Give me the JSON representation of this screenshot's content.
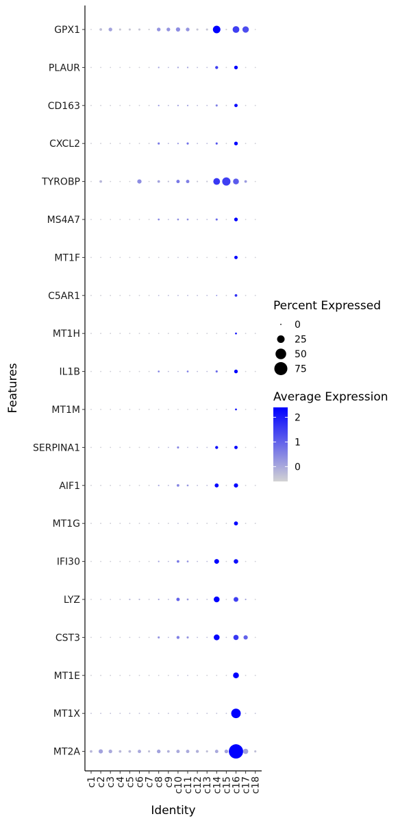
{
  "chart_data": {
    "type": "dotplot",
    "xlabel": "Identity",
    "ylabel": "Features",
    "categories": [
      "c1",
      "c2",
      "c3",
      "c4",
      "c5",
      "c6",
      "c7",
      "c8",
      "c9",
      "c10",
      "c11",
      "c12",
      "c13",
      "c14",
      "c15",
      "c16",
      "c17",
      "c18"
    ],
    "features": [
      "GPX1",
      "PLAUR",
      "CD163",
      "CXCL2",
      "TYROBP",
      "MS4A7",
      "MT1F",
      "C5AR1",
      "MT1H",
      "IL1B",
      "MT1M",
      "SERPINA1",
      "AIF1",
      "MT1G",
      "IFI30",
      "LYZ",
      "CST3",
      "MT1E",
      "MT1X",
      "MT2A"
    ],
    "size_legend": {
      "title": "Percent Expressed",
      "values": [
        0,
        25,
        50,
        75
      ]
    },
    "color_legend": {
      "title": "Average Expression",
      "ticks": [
        0,
        1,
        2
      ],
      "range": [
        -0.6,
        2.4
      ],
      "low_color": "#d3d3d3",
      "high_color": "#0000ff"
    },
    "points": [
      {
        "feature": "GPX1",
        "pct": [
          0.5,
          3,
          6,
          2,
          2,
          2,
          1,
          6,
          6,
          8,
          6,
          2,
          2,
          25,
          1,
          20,
          18,
          0.5
        ],
        "avg": [
          -0.5,
          -0.3,
          0.1,
          -0.4,
          -0.4,
          -0.4,
          -0.5,
          0.3,
          0.3,
          0.4,
          0.3,
          -0.4,
          -0.4,
          2.5,
          -0.5,
          1.5,
          1.3,
          -0.5
        ]
      },
      {
        "feature": "PLAUR",
        "pct": [
          0.3,
          0.3,
          0.3,
          0.3,
          0.3,
          0.3,
          0.3,
          1,
          0.5,
          1,
          1,
          0.5,
          0.5,
          4,
          0.3,
          6,
          0.3,
          0.3
        ],
        "avg": [
          -0.5,
          -0.5,
          -0.5,
          -0.5,
          -0.5,
          -0.5,
          -0.5,
          0.1,
          -0.2,
          0.1,
          0.1,
          -0.2,
          -0.2,
          1.5,
          -0.5,
          2.4,
          -0.5,
          -0.5
        ]
      },
      {
        "feature": "CD163",
        "pct": [
          0.3,
          0.3,
          0.3,
          0.3,
          0.3,
          0.3,
          0.3,
          1,
          0.5,
          1,
          1,
          0.5,
          0.5,
          2,
          0.3,
          5,
          0.3,
          0.3
        ],
        "avg": [
          -0.5,
          -0.5,
          -0.5,
          -0.5,
          -0.5,
          -0.5,
          -0.5,
          0.3,
          -0.2,
          0.2,
          0.2,
          -0.2,
          -0.2,
          0.6,
          -0.5,
          2.3,
          -0.5,
          -0.5
        ]
      },
      {
        "feature": "CXCL2",
        "pct": [
          0.3,
          0.3,
          0.3,
          0.3,
          0.3,
          0.3,
          0.3,
          2,
          0.5,
          1,
          2,
          0.5,
          0.5,
          2,
          0.3,
          6,
          0.3,
          0.3
        ],
        "avg": [
          -0.5,
          -0.5,
          -0.5,
          -0.5,
          -0.5,
          -0.5,
          -0.5,
          0.7,
          -0.2,
          0.3,
          0.8,
          -0.2,
          -0.2,
          1.2,
          -0.5,
          2.4,
          -0.5,
          -0.5
        ]
      },
      {
        "feature": "TYROBP",
        "pct": [
          0.3,
          3,
          0.5,
          0.5,
          0.5,
          8,
          0.5,
          3,
          1,
          5,
          5,
          1,
          1,
          20,
          30,
          15,
          3,
          0.3
        ],
        "avg": [
          -0.5,
          -0.2,
          -0.5,
          -0.5,
          -0.5,
          0.4,
          -0.5,
          0.1,
          -0.3,
          0.7,
          0.6,
          -0.4,
          -0.4,
          1.6,
          1.5,
          1.1,
          0.2,
          -0.5
        ]
      },
      {
        "feature": "MS4A7",
        "pct": [
          0.3,
          0.3,
          0.3,
          0.3,
          0.3,
          0.3,
          0.3,
          1.5,
          0.5,
          1.5,
          1.5,
          0.5,
          0.5,
          2,
          0.3,
          6,
          0.3,
          0.3
        ],
        "avg": [
          -0.5,
          -0.5,
          -0.5,
          -0.5,
          -0.5,
          -0.5,
          -0.5,
          0.5,
          -0.2,
          0.4,
          0.4,
          -0.2,
          -0.2,
          0.9,
          -0.5,
          2.4,
          -0.5,
          -0.5
        ]
      },
      {
        "feature": "MT1F",
        "pct": [
          0.3,
          0.3,
          0.3,
          0.3,
          0.3,
          0.3,
          0.3,
          0.3,
          0.3,
          0.5,
          0.5,
          0.3,
          0.3,
          0.3,
          0.3,
          5,
          0.3,
          0.3
        ],
        "avg": [
          -0.5,
          -0.5,
          -0.5,
          -0.5,
          -0.5,
          -0.5,
          -0.5,
          -0.5,
          -0.5,
          -0.3,
          -0.3,
          -0.5,
          -0.5,
          -0.5,
          -0.5,
          2.4,
          -0.5,
          -0.5
        ]
      },
      {
        "feature": "C5AR1",
        "pct": [
          0.3,
          0.3,
          0.3,
          0.3,
          0.3,
          0.3,
          0.3,
          0.5,
          0.5,
          0.5,
          0.5,
          0.5,
          0.5,
          0.5,
          0.3,
          3,
          0.3,
          0.3
        ],
        "avg": [
          -0.5,
          -0.5,
          -0.5,
          -0.5,
          -0.5,
          -0.5,
          -0.5,
          -0.2,
          -0.2,
          -0.1,
          -0.1,
          -0.2,
          -0.2,
          0.5,
          -0.5,
          1.7,
          -0.5,
          -0.5
        ]
      },
      {
        "feature": "MT1H",
        "pct": [
          0.3,
          0.3,
          0.3,
          0.3,
          0.3,
          0.3,
          0.3,
          0.3,
          0.3,
          0.3,
          0.3,
          0.3,
          0.3,
          0.3,
          0.3,
          1.5,
          0.3,
          0.3
        ],
        "avg": [
          -0.5,
          -0.5,
          -0.5,
          -0.5,
          -0.5,
          -0.5,
          -0.5,
          -0.5,
          -0.5,
          -0.5,
          -0.5,
          -0.5,
          -0.5,
          -0.5,
          -0.5,
          2.2,
          -0.5,
          -0.5
        ]
      },
      {
        "feature": "IL1B",
        "pct": [
          0.3,
          0.3,
          0.3,
          0.3,
          0.3,
          0.3,
          0.3,
          1.5,
          0.5,
          0.5,
          1.5,
          0.5,
          0.5,
          2,
          0.3,
          6,
          0.3,
          0.3
        ],
        "avg": [
          -0.5,
          -0.5,
          -0.5,
          -0.5,
          -0.5,
          -0.5,
          -0.5,
          0.5,
          -0.2,
          -0.1,
          0.6,
          -0.2,
          -0.2,
          0.9,
          -0.5,
          2.4,
          -0.5,
          -0.5
        ]
      },
      {
        "feature": "MT1M",
        "pct": [
          0.3,
          0.3,
          0.3,
          0.3,
          0.3,
          0.3,
          0.3,
          0.3,
          0.3,
          0.3,
          0.3,
          0.3,
          0.3,
          0.3,
          0.3,
          1.5,
          0.3,
          0.3
        ],
        "avg": [
          -0.5,
          -0.5,
          -0.5,
          -0.5,
          -0.5,
          -0.5,
          -0.5,
          -0.5,
          -0.5,
          -0.5,
          -0.5,
          -0.5,
          -0.5,
          -0.5,
          -0.5,
          2.2,
          -0.5,
          -0.5
        ]
      },
      {
        "feature": "SERPINA1",
        "pct": [
          0.3,
          0.3,
          0.3,
          0.3,
          0.3,
          0.3,
          0.3,
          0.5,
          0.5,
          2,
          0.5,
          0.5,
          0.5,
          4,
          0.3,
          5,
          0.3,
          0.3
        ],
        "avg": [
          -0.5,
          -0.5,
          -0.5,
          -0.5,
          -0.5,
          -0.5,
          -0.5,
          -0.2,
          -0.2,
          0.5,
          -0.2,
          -0.2,
          -0.2,
          2.2,
          -0.5,
          2.3,
          -0.5,
          -0.5
        ]
      },
      {
        "feature": "AIF1",
        "pct": [
          0.3,
          0.3,
          0.3,
          0.3,
          0.3,
          0.3,
          0.3,
          1,
          0.5,
          3,
          1.5,
          0.5,
          0.5,
          7,
          0.3,
          8,
          0.3,
          0.3
        ],
        "avg": [
          -0.5,
          -0.5,
          -0.5,
          -0.5,
          -0.5,
          -0.5,
          -0.5,
          0.1,
          -0.2,
          0.5,
          0.3,
          -0.2,
          -0.2,
          2.4,
          -0.5,
          2.4,
          -0.5,
          -0.5
        ]
      },
      {
        "feature": "MT1G",
        "pct": [
          0.3,
          0.3,
          0.3,
          0.3,
          0.3,
          0.3,
          0.3,
          0.3,
          0.3,
          0.5,
          0.5,
          0.3,
          0.3,
          0.3,
          0.3,
          7,
          0.3,
          0.3
        ],
        "avg": [
          -0.5,
          -0.5,
          -0.5,
          -0.5,
          -0.5,
          -0.5,
          -0.5,
          -0.5,
          -0.5,
          -0.3,
          -0.3,
          -0.5,
          -0.5,
          -0.5,
          -0.5,
          2.4,
          -0.5,
          -0.5
        ]
      },
      {
        "feature": "IFI30",
        "pct": [
          0.3,
          0.3,
          0.3,
          0.3,
          0.3,
          0.3,
          0.3,
          1,
          0.5,
          3,
          1.5,
          0.5,
          0.5,
          10,
          0.3,
          9,
          0.3,
          0.3
        ],
        "avg": [
          -0.5,
          -0.5,
          -0.5,
          -0.5,
          -0.5,
          -0.5,
          -0.5,
          0.1,
          -0.2,
          0.7,
          0.3,
          -0.2,
          -0.2,
          2.4,
          -0.5,
          2.2,
          -0.5,
          -0.5
        ]
      },
      {
        "feature": "LYZ",
        "pct": [
          0.3,
          0.5,
          0.5,
          0.5,
          1,
          1,
          0.5,
          1,
          0.5,
          5,
          1.5,
          0.5,
          0.5,
          15,
          0.3,
          10,
          1,
          0.3
        ],
        "avg": [
          -0.5,
          -0.4,
          -0.4,
          -0.4,
          -0.2,
          -0.2,
          -0.4,
          0.1,
          -0.2,
          1.0,
          0.2,
          -0.2,
          -0.2,
          2.4,
          -0.5,
          1.5,
          0.1,
          -0.5
        ]
      },
      {
        "feature": "CST3",
        "pct": [
          0.3,
          0.3,
          0.3,
          0.3,
          0.5,
          0.5,
          0.3,
          2,
          0.5,
          4,
          2,
          0.5,
          0.5,
          15,
          0.5,
          12,
          8,
          0.3
        ],
        "avg": [
          -0.5,
          -0.5,
          -0.5,
          -0.5,
          -0.4,
          -0.4,
          -0.5,
          0.3,
          -0.2,
          0.6,
          0.3,
          -0.2,
          -0.2,
          2.3,
          -0.3,
          1.6,
          1.0,
          -0.5
        ]
      },
      {
        "feature": "MT1E",
        "pct": [
          0.3,
          0.3,
          0.3,
          0.3,
          0.3,
          0.3,
          0.3,
          0.3,
          0.3,
          0.5,
          0.5,
          0.3,
          0.3,
          0.3,
          0.3,
          15,
          0.3,
          0.3
        ],
        "avg": [
          -0.5,
          -0.5,
          -0.5,
          -0.5,
          -0.5,
          -0.5,
          -0.5,
          -0.5,
          -0.5,
          -0.3,
          -0.3,
          -0.5,
          -0.5,
          -0.5,
          -0.5,
          2.4,
          -0.5,
          -0.5
        ]
      },
      {
        "feature": "MT1X",
        "pct": [
          0.5,
          0.5,
          0.5,
          0.5,
          0.5,
          0.5,
          0.5,
          0.5,
          0.5,
          0.5,
          0.5,
          0.5,
          0.5,
          0.5,
          0.5,
          40,
          0.5,
          0.5
        ],
        "avg": [
          -0.3,
          -0.3,
          -0.3,
          -0.3,
          -0.3,
          -0.3,
          -0.3,
          -0.3,
          -0.3,
          -0.3,
          -0.3,
          -0.3,
          -0.3,
          -0.3,
          -0.3,
          2.4,
          -0.3,
          -0.3
        ]
      },
      {
        "feature": "MT2A",
        "pct": [
          3,
          8,
          6,
          3,
          3,
          5,
          2,
          6,
          3,
          5,
          5,
          4,
          2,
          5,
          6,
          90,
          12,
          2
        ],
        "avg": [
          -0.2,
          0.1,
          0.0,
          -0.2,
          -0.2,
          0.0,
          -0.3,
          0.1,
          -0.1,
          0.0,
          0.0,
          -0.1,
          -0.3,
          0.0,
          0.1,
          2.4,
          0.1,
          -0.3
        ]
      }
    ]
  }
}
